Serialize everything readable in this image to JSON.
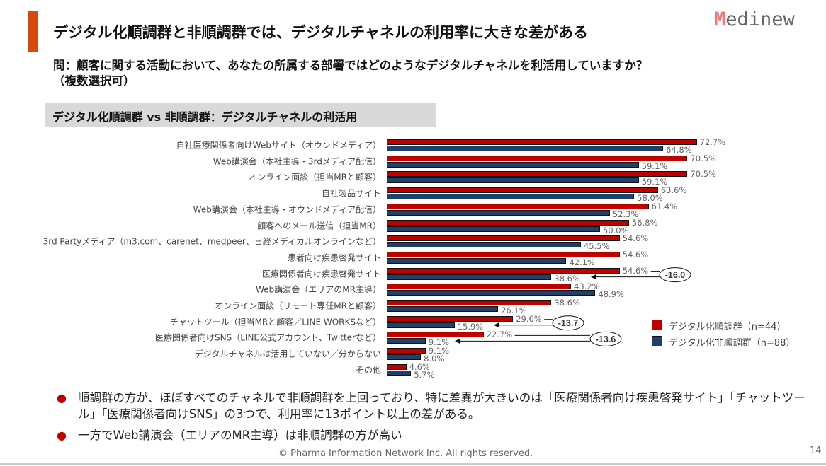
{
  "header": {
    "title": "デジタル化順調群と非順調群では、デジタルチャネルの利用率に大きな差がある",
    "logo": "Medinew",
    "accent_color": "#d9480f"
  },
  "question": {
    "line1": "問：顧客に関する活動において、あなたの所属する部署ではどのようなデジタルチャネルを利活用していますか？",
    "line2": "（複数選択可）"
  },
  "section_label": "デジタル化順調群 vs 非順調群：デジタルチャネルの利活用",
  "chart_data": {
    "type": "bar",
    "orientation": "horizontal",
    "xlim": [
      0,
      100
    ],
    "unit": "%",
    "categories": [
      "自社医療関係者向けWebサイト（オウンドメディア）",
      "Web講演会（本社主導・3rdメディア配信）",
      "オンライン面談（担当MRと顧客）",
      "自社製品サイト",
      "Web講演会（本社主導・オウンドメディア配信）",
      "顧客へのメール送信（担当MR）",
      "3rd Partyメディア（m3.com、carenet、medpeer、日経メディカルオンラインなど）",
      "患者向け疾患啓発サイト",
      "医療関係者向け疾患啓発サイト",
      "Web講演会（エリアのMR主導）",
      "オンライン面談（リモート専任MRと顧客）",
      "チャットツール（担当MRと顧客／LINE WORKSなど）",
      "医療関係者向けSNS（LINE公式アカウント、Twitterなど）",
      "デジタルチャネルは活用していない／分からない",
      "その他"
    ],
    "series": [
      {
        "name": "デジタル化順調群（n=44）",
        "color": "#c00000",
        "values": [
          72.7,
          70.5,
          70.5,
          63.6,
          61.4,
          56.8,
          54.6,
          54.6,
          54.6,
          43.2,
          38.6,
          29.6,
          22.7,
          9.1,
          4.6
        ]
      },
      {
        "name": "デジタル化非順調群（n=88）",
        "color": "#1f3f6e",
        "values": [
          64.8,
          59.1,
          59.1,
          58.0,
          52.3,
          50.0,
          45.5,
          42.1,
          38.6,
          48.9,
          26.1,
          15.9,
          9.1,
          8.0,
          5.7
        ]
      }
    ],
    "annotations": [
      {
        "category_index": 8,
        "label": "-16.0"
      },
      {
        "category_index": 11,
        "label": "-13.7"
      },
      {
        "category_index": 12,
        "label": "-13.6"
      }
    ],
    "legend": "right"
  },
  "bullets": [
    "順調群の方が、ほぼすべてのチャネルで非順調群を上回っており、特に差異が大きいのは「医療関係者向け疾患啓発サイト」「チャットツール」「医療関係者向けSNS」の3つで、利用率に13ポイント以上の差がある。",
    "一方でWeb講演会（エリアのMR主導）は非順調群の方が高い"
  ],
  "bullet_symbol": "●",
  "footer": "© Pharma Information Network Inc.  All rights reserved.",
  "page_number": "14"
}
